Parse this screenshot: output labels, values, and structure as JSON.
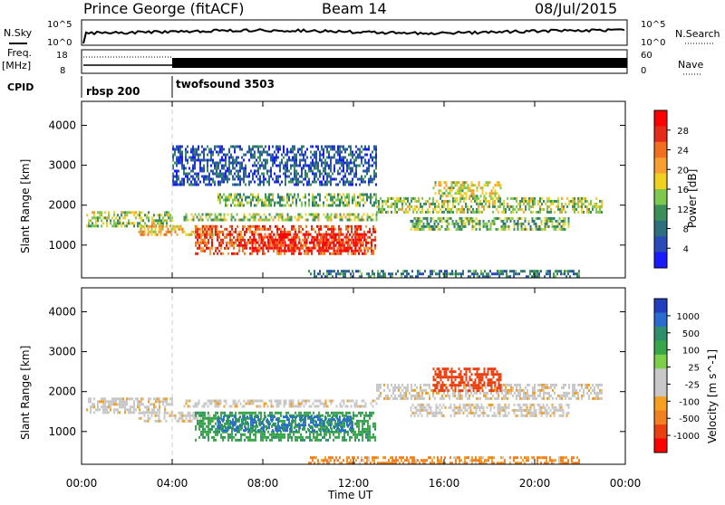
{
  "header": {
    "station": "Prince George (fitACF)",
    "beam": "Beam 14",
    "date": "08/Jul/2015"
  },
  "panels_top": {
    "nsky_label": "N.Sky",
    "nsky_ticks": [
      "10^5",
      "10^0"
    ],
    "nsearch_label": "N.Search",
    "nsearch_ticks": [
      "10^5",
      "10^0"
    ],
    "freq_label": "Freq.",
    "freq_unit": "[MHz]",
    "freq_ticks": [
      "18",
      "8"
    ],
    "nave_label": "Nave",
    "nave_ticks": [
      "60",
      "0"
    ],
    "cpid_label": "CPID",
    "cpid_segments": [
      {
        "name": "rbsp 200",
        "start_hour": 0,
        "end_hour": 4
      },
      {
        "name": "twofsound 3503",
        "start_hour": 4,
        "end_hour": 24
      }
    ]
  },
  "chart_data": [
    {
      "type": "heatmap",
      "title": "",
      "xlabel": "Time UT",
      "ylabel": "Slant Range [km]",
      "xlim": [
        0,
        24
      ],
      "ylim": [
        180,
        4600
      ],
      "x_ticks": [
        "00:00",
        "04:00",
        "08:00",
        "12:00",
        "16:00",
        "20:00",
        "00:00"
      ],
      "y_ticks": [
        1000,
        2000,
        3000,
        4000
      ],
      "colorbar": {
        "label": "Power [dB]",
        "ticks": [
          4,
          8,
          12,
          16,
          20,
          24,
          28
        ],
        "colors": [
          "#1a1aff",
          "#2a4bb8",
          "#2e6f7e",
          "#3a8f5a",
          "#7ec850",
          "#f2d020",
          "#f5a030",
          "#f07020",
          "#e52b1a",
          "#ff0000"
        ]
      },
      "regions": [
        {
          "t0": 0.2,
          "t1": 4.0,
          "r0": 1450,
          "r1": 1850,
          "value": 14
        },
        {
          "t0": 2.5,
          "t1": 6.0,
          "r0": 1250,
          "r1": 1500,
          "value": 18
        },
        {
          "t0": 5.0,
          "t1": 13.0,
          "r0": 800,
          "r1": 1500,
          "value": 24
        },
        {
          "t0": 7.5,
          "t1": 12.5,
          "r0": 850,
          "r1": 1300,
          "value": 27
        },
        {
          "t0": 4.5,
          "t1": 13.0,
          "r0": 1600,
          "r1": 1800,
          "value": 14
        },
        {
          "t0": 6.0,
          "t1": 13.0,
          "r0": 2000,
          "r1": 2300,
          "value": 12
        },
        {
          "t0": 13.0,
          "t1": 23.0,
          "r0": 1800,
          "r1": 2200,
          "value": 14
        },
        {
          "t0": 14.5,
          "t1": 21.5,
          "r0": 1400,
          "r1": 1700,
          "value": 12
        },
        {
          "t0": 15.5,
          "t1": 18.5,
          "r0": 2200,
          "r1": 2600,
          "value": 16
        },
        {
          "t0": 4.0,
          "t1": 13.0,
          "r0": 2500,
          "r1": 3500,
          "value": 6
        },
        {
          "t0": 10.0,
          "t1": 22.0,
          "r0": 220,
          "r1": 380,
          "value": 8
        }
      ]
    },
    {
      "type": "heatmap",
      "title": "",
      "xlabel": "Time UT",
      "ylabel": "Slant Range [km]",
      "xlim": [
        0,
        24
      ],
      "ylim": [
        180,
        4600
      ],
      "x_ticks": [
        "00:00",
        "04:00",
        "08:00",
        "12:00",
        "16:00",
        "20:00",
        "00:00"
      ],
      "y_ticks": [
        1000,
        2000,
        3000,
        4000
      ],
      "colorbar": {
        "label": "Velocity [m s^-1]",
        "ticks": [
          1000,
          500,
          100,
          25,
          -25,
          -100,
          -500,
          -1000
        ],
        "colors": [
          "#1f3fbf",
          "#2a6bd0",
          "#2e8f6a",
          "#3aa64a",
          "#7cd04a",
          "#c8c8c8",
          "#c8c8c8",
          "#f5a020",
          "#f08020",
          "#e84010",
          "#ff0000"
        ]
      },
      "regions": [
        {
          "t0": 0.2,
          "t1": 4.0,
          "r0": 1450,
          "r1": 1850,
          "value": 0
        },
        {
          "t0": 2.5,
          "t1": 6.0,
          "r0": 1250,
          "r1": 1500,
          "value": 0
        },
        {
          "t0": 5.0,
          "t1": 13.0,
          "r0": 800,
          "r1": 1500,
          "value": 200
        },
        {
          "t0": 6.0,
          "t1": 12.0,
          "r0": 1000,
          "r1": 1400,
          "value": 600
        },
        {
          "t0": 4.5,
          "t1": 13.0,
          "r0": 1600,
          "r1": 1800,
          "value": 0
        },
        {
          "t0": 13.0,
          "t1": 23.0,
          "r0": 1800,
          "r1": 2200,
          "value": 0
        },
        {
          "t0": 14.5,
          "t1": 21.5,
          "r0": 1400,
          "r1": 1700,
          "value": 0
        },
        {
          "t0": 15.5,
          "t1": 18.5,
          "r0": 2000,
          "r1": 2600,
          "value": -300
        },
        {
          "t0": 10.0,
          "t1": 22.0,
          "r0": 220,
          "r1": 380,
          "value": -60
        }
      ]
    }
  ]
}
